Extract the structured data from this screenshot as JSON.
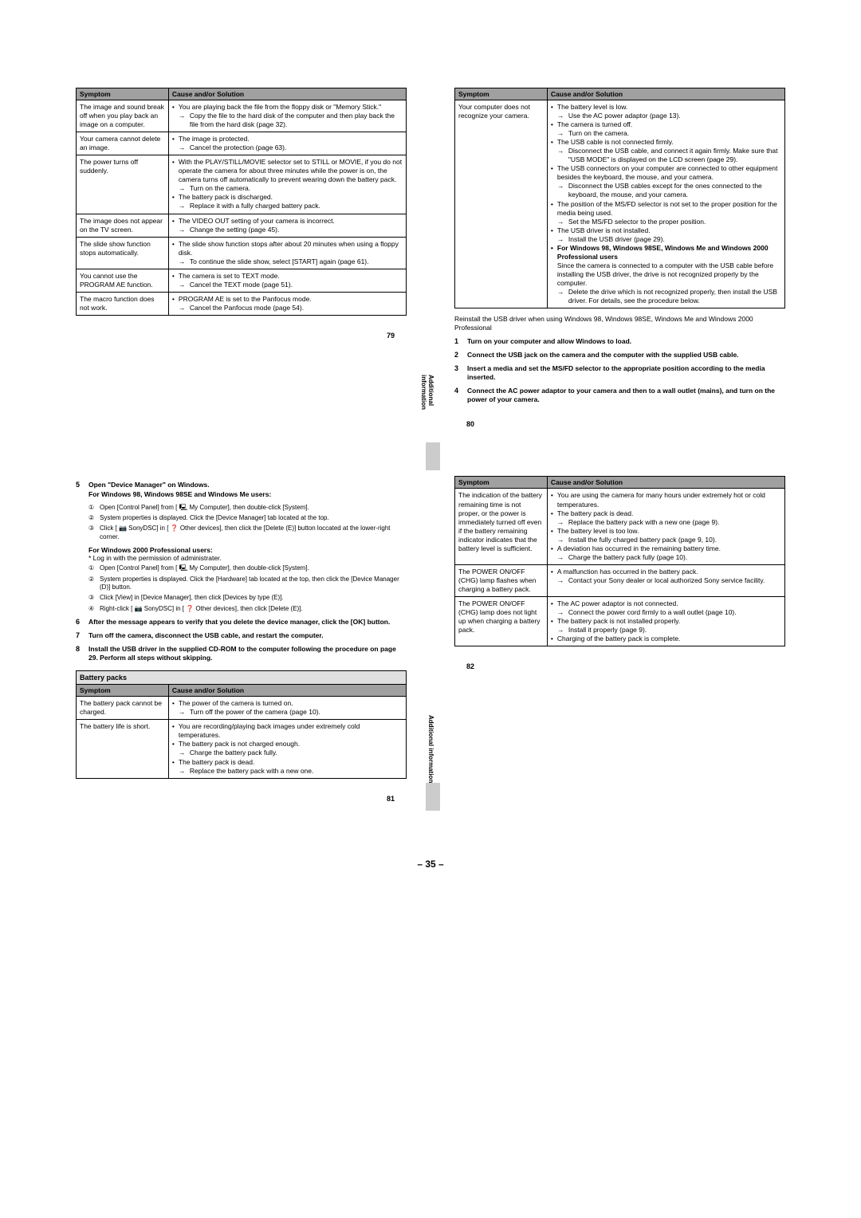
{
  "p79": {
    "headers": [
      "Symptom",
      "Cause and/or Solution"
    ],
    "rows": [
      {
        "s": "The image and sound break off when you play back an image on a computer.",
        "c": [
          "• You are playing back the file from the floppy disk or \"Memory Stick.\"",
          "→Copy the file to the hard disk of the computer and then play back the file from the hard disk (page 32)."
        ]
      },
      {
        "s": "Your camera cannot delete an image.",
        "c": [
          "• The image is protected.",
          "→Cancel the protection (page 63)."
        ]
      },
      {
        "s": "The power turns off suddenly.",
        "c": [
          "• With the PLAY/STILL/MOVIE selector set to STILL or MOVIE, if you do not operate the camera for about three minutes while the power is on, the camera turns off automatically to prevent wearing down the battery pack.",
          "→Turn on the camera.",
          "• The battery pack is discharged.",
          "→Replace it with a fully charged battery pack."
        ]
      },
      {
        "s": "The image does not appear on the TV screen.",
        "c": [
          "• The VIDEO OUT setting of your camera is incorrect.",
          "→Change the setting (page 45)."
        ]
      },
      {
        "s": "The slide show function stops automatically.",
        "c": [
          "• The slide show function stops after about 20 minutes when using a floppy disk.",
          "→To continue the slide show, select [START] again (page 61)."
        ]
      },
      {
        "s": "You cannot use the PROGRAM AE function.",
        "c": [
          "• The camera is set to TEXT mode.",
          "→Cancel the TEXT mode (page 51)."
        ]
      },
      {
        "s": "The macro function does not work.",
        "c": [
          "• PROGRAM AE is set to the Panfocus mode.",
          "→Cancel the Panfocus mode (page 54)."
        ]
      }
    ],
    "side": "Additional information",
    "num": "79"
  },
  "p80": {
    "headers": [
      "Symptom",
      "Cause and/or Solution"
    ],
    "rows": [
      {
        "s": "Your computer does not recognize your camera.",
        "c": [
          "• The battery level is low.",
          "→Use the AC power adaptor (page 13).",
          "• The camera is turned off.",
          "→Turn on the camera.",
          "• The USB cable is not connected firmly.",
          "→Disconnect the USB cable, and connect it again firmly. Make sure that \"USB MODE\" is displayed on the LCD screen (page 29).",
          "• The USB connectors on your computer are connected to other equipment besides the keyboard, the mouse, and your camera.",
          "→Disconnect the USB cables except for the ones connected to the keyboard, the mouse, and your camera.",
          "• The position of the MS/FD selector is not set to the proper position for the media being used.",
          "→Set the MS/FD selector to the proper position.",
          "• The USB driver is not installed.",
          "→Install the USB driver (page 29).",
          "• For Windows 98, Windows 98SE, Windows Me and Windows 2000 Professional users",
          "Since the camera is connected to a computer with the USB cable before installing the USB driver, the drive is not recognized properly by the computer.",
          "→Delete the drive which is not recognized properly, then install the USB driver. For details, see the procedure below."
        ]
      }
    ],
    "reinstall": "Reinstall the USB driver when using Windows 98, Windows 98SE, Windows Me and Windows 2000 Professional",
    "steps": [
      {
        "n": "1",
        "t": "Turn on your computer and allow Windows to load."
      },
      {
        "n": "2",
        "t": "Connect the USB jack on the camera and the computer with the supplied USB cable."
      },
      {
        "n": "3",
        "t": "Insert a media and set the MS/FD selector to the appropriate position according to the media inserted."
      },
      {
        "n": "4",
        "t": "Connect the AC power adaptor to your camera and then to a wall outlet (mains), and turn on the power of your camera."
      }
    ],
    "num": "80"
  },
  "p81": {
    "step5": {
      "n": "5",
      "title": "Open \"Device Manager\" on Windows.",
      "sub1": "For Windows 98, Windows 98SE and Windows Me users:",
      "items1": [
        {
          "n": "①",
          "t": "Open [Control Panel] from [ 🖳 My Computer], then double-click [System]."
        },
        {
          "n": "②",
          "t": "System properties is displayed. Click the [Device Manager] tab located at the top."
        },
        {
          "n": "③",
          "t": "Click [ 📷 SonyDSC] in [ ❓ Other devices], then click the [Delete (E)] button loccated at the lower-right corner."
        }
      ],
      "sub2": "For Windows 2000 Professional users:",
      "note2": "* Log in with the permission of administrater.",
      "items2": [
        {
          "n": "①",
          "t": "Open [Control Panel] from [ 🖳 My Computer], then double-click [System]."
        },
        {
          "n": "②",
          "t": "System properties is displayed. Click the [Hardware] tab located at the top, then click the  [Device Manager (D)] button."
        },
        {
          "n": "③",
          "t": "Click [View] in [Device Manager], then click [Devices by type (E)]."
        },
        {
          "n": "④",
          "t": "Right-click [ 📷 SonyDSC] in [ ❓ Other devices], then click [Delete (E)]."
        }
      ]
    },
    "steps_rest": [
      {
        "n": "6",
        "t": "After the message appears to verify that you delete the device manager, click the [OK] button."
      },
      {
        "n": "7",
        "t": "Turn off the camera, disconnect the USB cable, and restart the computer."
      },
      {
        "n": "8",
        "t": "Install the USB driver in the supplied CD-ROM to the computer following the procedure on page 29. Perform all steps without skipping."
      }
    ],
    "section": "Battery packs",
    "headers": [
      "Symptom",
      "Cause and/or Solution"
    ],
    "rows": [
      {
        "s": "The battery pack cannot be charged.",
        "c": [
          "• The power of the camera is turned on.",
          "→Turn off the power of the camera (page 10)."
        ]
      },
      {
        "s": "The battery life is short.",
        "c": [
          "• You are recording/playing back images under extremely cold temperatures.",
          "• The battery pack is not charged enough.",
          "→Charge the battery pack fully.",
          "• The battery pack is dead.",
          "→Replace the battery pack with a new one."
        ]
      }
    ],
    "side": "Additional information",
    "num": "81"
  },
  "p82": {
    "headers": [
      "Symptom",
      "Cause and/or Solution"
    ],
    "rows": [
      {
        "s": "The indication of the battery remaining time is not proper, or the power is immediately turned off even if the battery remaining indicator indicates that the battery level is sufficient.",
        "c": [
          "• You are using the camera for many hours under extremely hot or cold temperatures.",
          "• The battery pack is dead.",
          "→Replace the battery pack with a new one (page 9).",
          "• The battery level is too low.",
          "→Install the fully charged battery pack (page 9, 10).",
          "• A deviation has occurred in the remaining battery time.",
          "→Charge the battery pack fully (page 10)."
        ]
      },
      {
        "s": "The POWER ON/OFF (CHG) lamp flashes when charging a battery pack.",
        "c": [
          "• A malfunction has occurred in the battery pack.",
          "→Contact your Sony dealer or local authorized Sony service facility."
        ]
      },
      {
        "s": "The POWER ON/OFF (CHG) lamp does not light up when charging a battery pack.",
        "c": [
          "• The AC power adaptor is not connected.",
          "→Connect the power cord firmly to a wall outlet (page 10).",
          "• The battery pack is not installed properly.",
          "→Install it properly (page 9).",
          "• Charging of the battery pack is complete."
        ]
      }
    ],
    "num": "82"
  },
  "footer": "– 35 –"
}
